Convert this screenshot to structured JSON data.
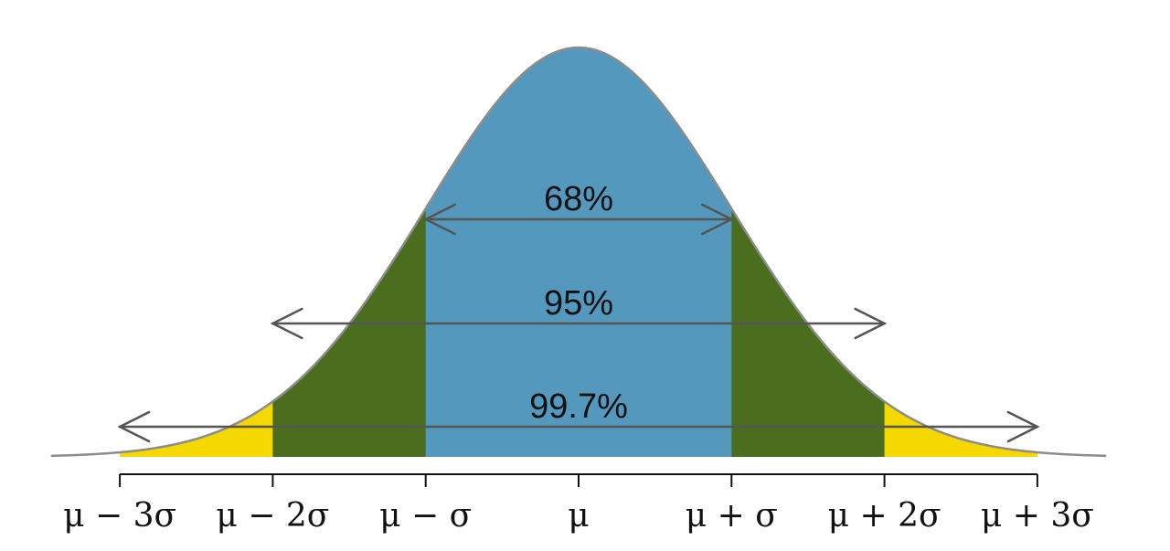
{
  "chart_data": {
    "type": "area",
    "title": "",
    "xlabel": "",
    "ylabel": "",
    "distribution": "normal",
    "x_range_sigma": [
      -3,
      3
    ],
    "ticks": [
      {
        "sigma": -3,
        "label": "μ − 3σ"
      },
      {
        "sigma": -2,
        "label": "μ − 2σ"
      },
      {
        "sigma": -1,
        "label": "μ − σ"
      },
      {
        "sigma": 0,
        "label": "μ"
      },
      {
        "sigma": 1,
        "label": "μ + σ"
      },
      {
        "sigma": 2,
        "label": "μ + 2σ"
      },
      {
        "sigma": 3,
        "label": "μ + 3σ"
      }
    ],
    "bands": [
      {
        "from_sigma": -1,
        "to_sigma": 1,
        "percent": 68,
        "label": "68%",
        "color": "#5499bd"
      },
      {
        "from_sigma": -2,
        "to_sigma": 2,
        "percent": 95,
        "label": "95%",
        "color": "#4a6e1e"
      },
      {
        "from_sigma": -3,
        "to_sigma": 3,
        "percent": 99.7,
        "label": "99.7%",
        "color": "#f4d800"
      }
    ],
    "curve_color": "#8c8c8c",
    "arrow_color": "#555555",
    "grid": false,
    "legend": "none"
  }
}
